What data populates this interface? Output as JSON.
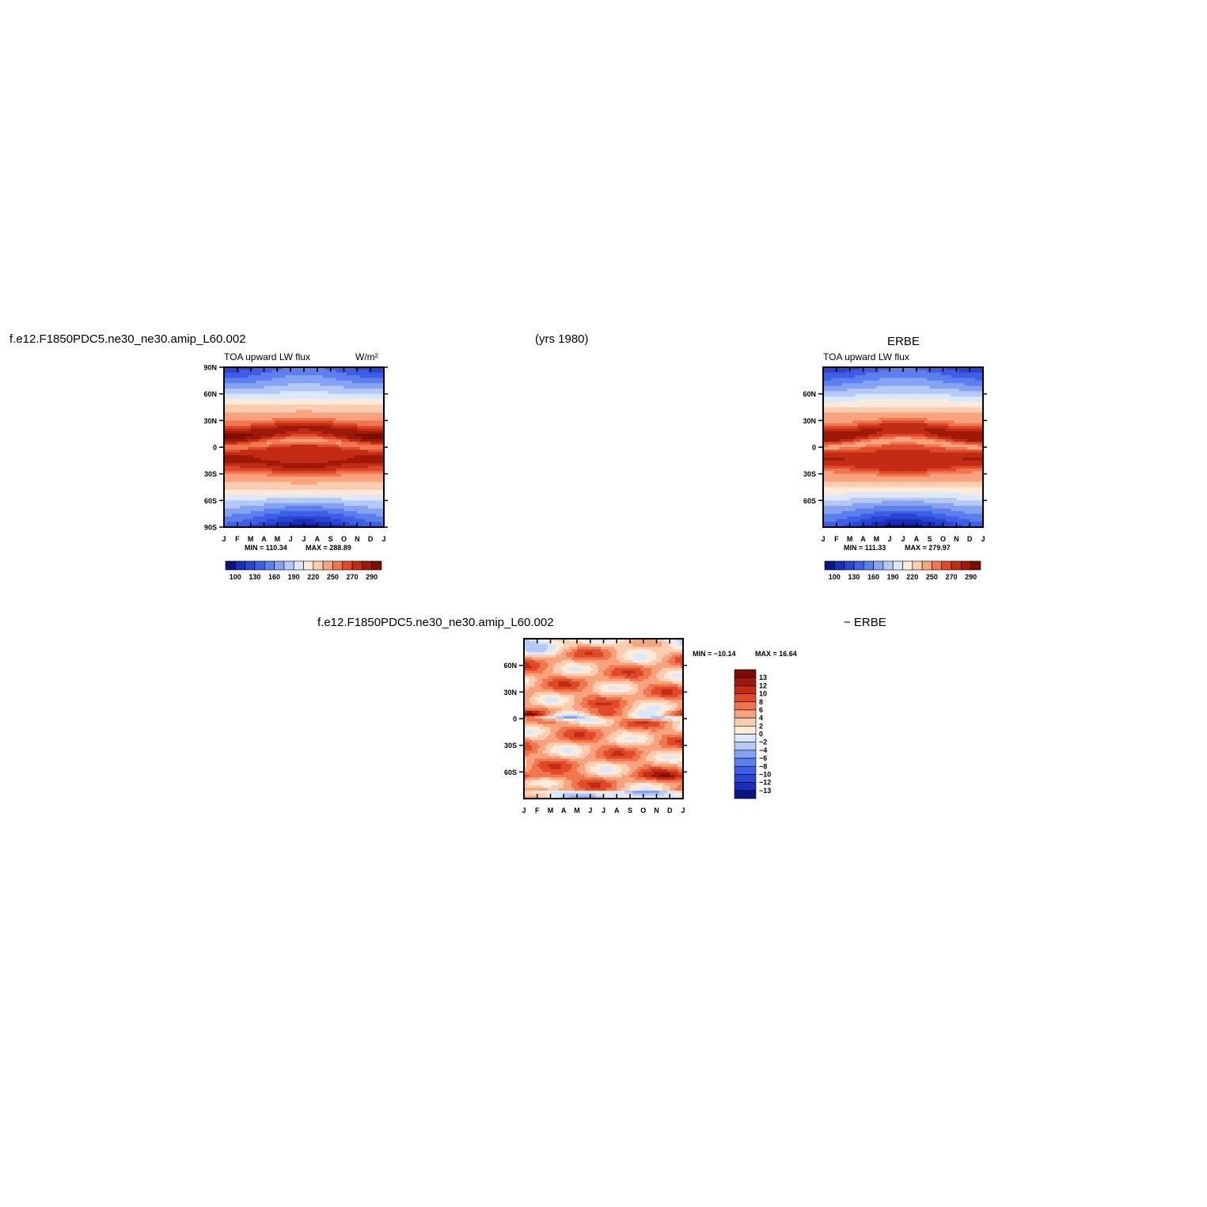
{
  "header": {
    "case_name": "f.e12.F1850PDC5.ne30_ne30.amip_L60.002",
    "years": "(yrs 1980)",
    "obs_name": "ERBE"
  },
  "bottom_header": {
    "case_name": "f.e12.F1850PDC5.ne30_ne30.amip_L60.002",
    "minus_obs": "− ERBE"
  },
  "chart_data": [
    {
      "type": "heatmap",
      "title": "TOA upward LW flux",
      "units": "W/m²",
      "months": [
        "J",
        "F",
        "M",
        "A",
        "M",
        "J",
        "J",
        "A",
        "S",
        "O",
        "N",
        "D",
        "J"
      ],
      "lat_ticks": [
        "90N",
        "60N",
        "30N",
        "0",
        "30S",
        "60S",
        "90S"
      ],
      "ylim": [
        -90,
        90
      ],
      "min_label": "MIN = 110.34",
      "max_label": "MAX = 288.89",
      "min": 110.34,
      "max": 288.89,
      "colorbar_labels": [
        "100",
        "130",
        "160",
        "190",
        "220",
        "250",
        "270",
        "290"
      ],
      "levels": [
        100,
        115,
        130,
        145,
        160,
        175,
        190,
        205,
        220,
        235,
        250,
        260,
        270,
        280,
        290
      ],
      "field": "model"
    },
    {
      "type": "heatmap",
      "title": "TOA upward LW flux",
      "units": "",
      "months": [
        "J",
        "F",
        "M",
        "A",
        "M",
        "J",
        "J",
        "A",
        "S",
        "O",
        "N",
        "D",
        "J"
      ],
      "lat_ticks": [
        "60N",
        "30N",
        "0",
        "30S",
        "60S"
      ],
      "ylim": [
        -90,
        90
      ],
      "min_label": "MIN = 111.33",
      "max_label": "MAX = 279.97",
      "min": 111.33,
      "max": 279.97,
      "colorbar_labels": [
        "100",
        "130",
        "160",
        "190",
        "220",
        "250",
        "270",
        "290"
      ],
      "levels": [
        100,
        115,
        130,
        145,
        160,
        175,
        190,
        205,
        220,
        235,
        250,
        260,
        270,
        280,
        290
      ],
      "field": "obs"
    },
    {
      "type": "heatmap",
      "title": "",
      "units": "",
      "months": [
        "J",
        "F",
        "M",
        "A",
        "M",
        "J",
        "J",
        "A",
        "S",
        "O",
        "N",
        "D",
        "J"
      ],
      "lat_ticks": [
        "60N",
        "30N",
        "0",
        "30S",
        "60S"
      ],
      "ylim": [
        -90,
        90
      ],
      "min_label": "MIN = −10.14",
      "max_label": "MAX =  16.64",
      "min": -10.14,
      "max": 16.64,
      "colorbar_labels": [
        "13",
        "12",
        "10",
        "8",
        "6",
        "4",
        "2",
        "0",
        "−2",
        "−4",
        "−6",
        "−8",
        "−10",
        "−12",
        "−13"
      ],
      "levels": [
        -13,
        -12,
        -10,
        -8,
        -6,
        -4,
        -2,
        0,
        2,
        4,
        6,
        8,
        10,
        12,
        13
      ],
      "field": "diff"
    }
  ],
  "palette": [
    "#0b1580",
    "#1a2fb8",
    "#2746d6",
    "#3d5fe6",
    "#5b80ee",
    "#86a3f2",
    "#b4c9f7",
    "#dbe7fb",
    "#fdebd9",
    "#fbcdb0",
    "#f7a47e",
    "#f0764f",
    "#e04a28",
    "#c22c14",
    "#9e1a08",
    "#7a0e03"
  ]
}
